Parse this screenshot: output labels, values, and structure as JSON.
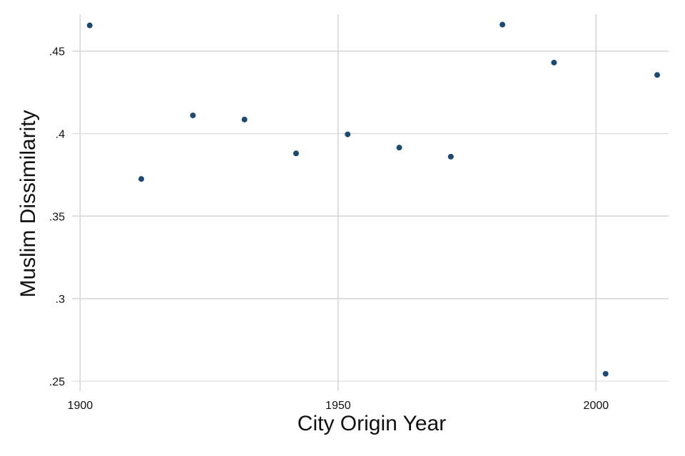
{
  "chart_data": {
    "type": "scatter",
    "xlabel": "City Origin Year",
    "ylabel": "Muslim Dissimilarity",
    "xlim": [
      1900,
      2013
    ],
    "ylim": [
      0.243,
      0.473
    ],
    "x_ticks": [
      1900,
      1950,
      2000
    ],
    "x_tick_labels": [
      "1900",
      "1950",
      "2000"
    ],
    "y_ticks": [
      0.25,
      0.3,
      0.35,
      0.4,
      0.45
    ],
    "y_tick_labels": [
      ".25",
      ".3",
      ".35",
      ".4",
      ".45"
    ],
    "grid": true,
    "marker_color": "#1d4a72",
    "points": [
      {
        "x": 1901,
        "y": 0.4655
      },
      {
        "x": 1911,
        "y": 0.3725
      },
      {
        "x": 1921,
        "y": 0.411
      },
      {
        "x": 1931,
        "y": 0.4085
      },
      {
        "x": 1941,
        "y": 0.388
      },
      {
        "x": 1951,
        "y": 0.3995
      },
      {
        "x": 1961,
        "y": 0.3915
      },
      {
        "x": 1971,
        "y": 0.386
      },
      {
        "x": 1981,
        "y": 0.466
      },
      {
        "x": 1991,
        "y": 0.443
      },
      {
        "x": 2001,
        "y": 0.2545
      },
      {
        "x": 2011,
        "y": 0.4355
      }
    ]
  }
}
